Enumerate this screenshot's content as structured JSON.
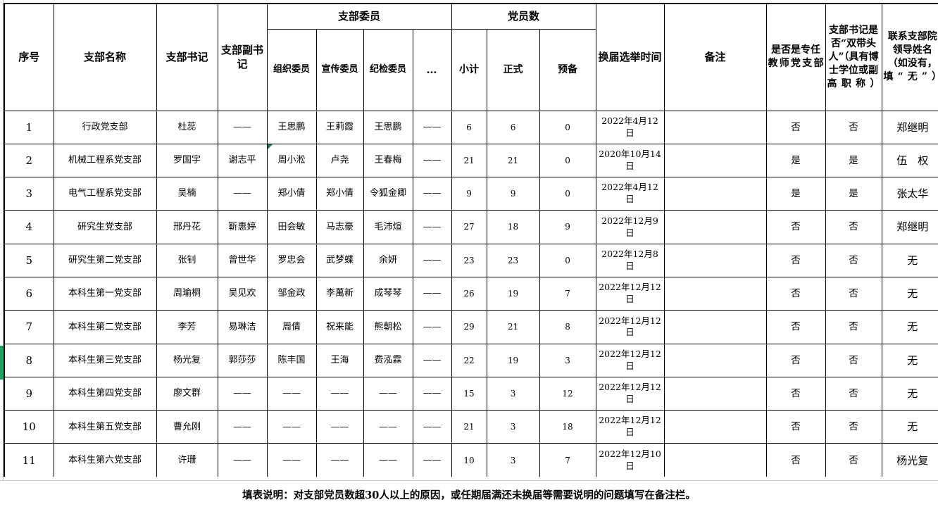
{
  "colors": {
    "table_border": "#000000",
    "gridline": "#c0c7d2",
    "selection_green": "#21a366",
    "comment_flag_green": "#217346",
    "background": "#ffffff"
  },
  "table": {
    "header": {
      "xuhao": "序号",
      "name": "支部名称",
      "shuji": "支部书记",
      "fushuji": "支部副书记",
      "weiyuan_group": "支部委员",
      "weiyuan_cols": [
        "组织委员",
        "宣传委员",
        "纪检委员",
        "…"
      ],
      "dangyuan_group": "党员数",
      "dangyuan_cols": [
        "小计",
        "正式",
        "预备"
      ],
      "huanjie": "换届选举时间",
      "beizhu": "备注",
      "zhuanren": "是否是专任教师党支部",
      "shuangdai": "支部书记是否“双带头人”（具有博士学位或副高职称）",
      "lianxi": "联系支部院领导姓名（如没有，填“无”）"
    },
    "rows": [
      {
        "cells": [
          "1",
          "行政党支部",
          "杜蕊",
          "——",
          "王思鹏",
          "王莉霞",
          "王思鹏",
          "——",
          "6",
          "6",
          "0",
          "2022年4月12日",
          "",
          "否",
          "否",
          "郑继明"
        ]
      },
      {
        "cells": [
          "2",
          "机械工程系党支部",
          "罗国宇",
          "谢志平",
          "周小淞",
          "卢尧",
          "王春梅",
          "——",
          "21",
          "21",
          "0",
          "2020年10月14日",
          "",
          "是",
          "是",
          "伍　权"
        ]
      },
      {
        "cells": [
          "3",
          "电气工程系党支部",
          "吴楠",
          "——",
          "郑小倩",
          "郑小倩",
          "令狐金卿",
          "——",
          "9",
          "9",
          "0",
          "2022年4月12日",
          "",
          "是",
          "是",
          "张太华"
        ]
      },
      {
        "cells": [
          "4",
          "研究生党支部",
          "邢丹花",
          "靳惠婷",
          "田会敏",
          "马志豪",
          "毛沛煊",
          "——",
          "27",
          "18",
          "9",
          "2022年12月9日",
          "",
          "否",
          "否",
          "郑继明"
        ]
      },
      {
        "cells": [
          "5",
          "研究生第二党支部",
          "张钊",
          "曾世华",
          "罗忠会",
          "武梦蝶",
          "余妍",
          "——",
          "23",
          "23",
          "0",
          "2022年12月8日",
          "",
          "否",
          "否",
          "无"
        ]
      },
      {
        "cells": [
          "6",
          "本科生第一党支部",
          "周瑜桐",
          "吴见欢",
          "邹金政",
          "李萬新",
          "成琴琴",
          "——",
          "26",
          "19",
          "7",
          "2022年12月12日",
          "",
          "否",
          "否",
          "无"
        ]
      },
      {
        "cells": [
          "7",
          "本科生第二党支部",
          "李芳",
          "易琳洁",
          "周倩",
          "祝来能",
          "熊朝松",
          "——",
          "29",
          "21",
          "8",
          "2022年12月12日",
          "",
          "否",
          "否",
          "无"
        ]
      },
      {
        "cells": [
          "8",
          "本科生第三党支部",
          "杨光复",
          "郭莎莎",
          "陈丰国",
          "王海",
          "费泓霖",
          "——",
          "22",
          "19",
          "3",
          "2022年12月12日",
          "",
          "否",
          "否",
          "无"
        ]
      },
      {
        "cells": [
          "9",
          "本科生第四党支部",
          "廖文群",
          "——",
          "——",
          "——",
          "——",
          "——",
          "15",
          "3",
          "12",
          "2022年12月12日",
          "",
          "否",
          "否",
          "无"
        ]
      },
      {
        "cells": [
          "10",
          "本科生第五党支部",
          "曹允刚",
          "——",
          "——",
          "——",
          "——",
          "——",
          "21",
          "3",
          "18",
          "2022年12月12日",
          "",
          "否",
          "否",
          "无"
        ]
      },
      {
        "cells": [
          "11",
          "本科生第六党支部",
          "许珊",
          "——",
          "——",
          "——",
          "——",
          "——",
          "10",
          "3",
          "7",
          "2022年12月10日",
          "",
          "否",
          "否",
          "杨光复"
        ]
      }
    ]
  },
  "annotations": {
    "selected_row_index": 7,
    "comment_cell_row": 1,
    "comment_cell_col": 4
  },
  "footer": {
    "note": "填表说明：对支部党员数超30人以上的原因，或任期届满还未换届等需要说明的问题填写在备注栏。"
  }
}
